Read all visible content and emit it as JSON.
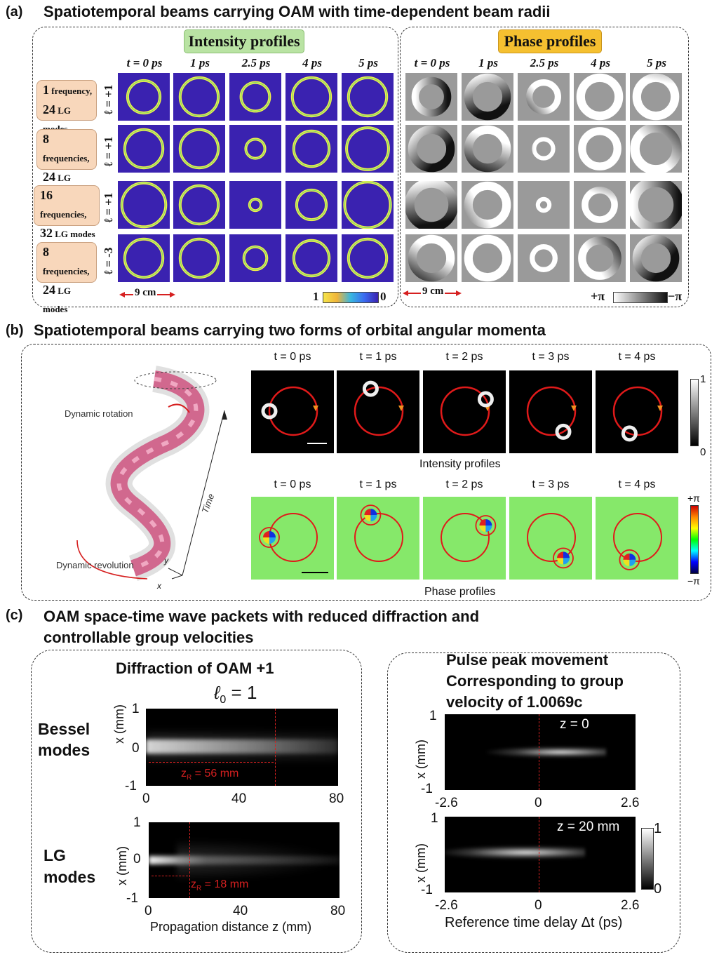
{
  "panel_a": {
    "letter": "(a)",
    "title": "Spatiotemporal beams carrying OAM with time-dependent beam radii",
    "intensity_title": "Intensity profiles",
    "phase_title": "Phase profiles",
    "intensity_times": [
      "t = 0 ps",
      "1 ps",
      "2.5 ps",
      "4 ps",
      "5 ps"
    ],
    "phase_times": [
      "t = 0 ps",
      "1 ps",
      "2.5 ps",
      "4 ps",
      "5 ps"
    ],
    "rows": [
      {
        "l1": "1",
        "l1b": " frequency,",
        "l2": "24",
        "l2b": " LG modes",
        "ell": "ℓ = +1",
        "radii": [
          0.34,
          0.4,
          0.3,
          0.4,
          0.4
        ]
      },
      {
        "l1": "8",
        "l1b": " frequencies,",
        "l2": "24",
        "l2b": " LG modes",
        "ell": "ℓ = +1",
        "radii": [
          0.4,
          0.4,
          0.2,
          0.37,
          0.44
        ]
      },
      {
        "l1": "16",
        "l1b": " frequencies,",
        "l2": "32",
        "l2b": " LG modes",
        "ell": "ℓ = +1",
        "radii": [
          0.46,
          0.4,
          0.12,
          0.31,
          0.48
        ]
      },
      {
        "l1": "8",
        "l1b": " frequencies,",
        "l2": "24",
        "l2b": " LG modes",
        "ell": "ℓ = -3",
        "radii": [
          0.4,
          0.4,
          0.24,
          0.37,
          0.4
        ]
      }
    ],
    "scale_intensity": "9 cm",
    "scale_phase": "9 cm",
    "cbar_intensity_left": "1",
    "cbar_intensity_right": "0",
    "cbar_phase_left": "+π",
    "cbar_phase_right": "−π",
    "colors": {
      "tile_bg": "#3a22b0",
      "ring": "#f2f04a",
      "tag_bg": "#f8d7bb",
      "intensity_tag": "#b9e3a3",
      "phase_tag": "#f5c030",
      "phase_bg": "#9a9a9a"
    }
  },
  "panel_b": {
    "letter": "(b)",
    "title": "Spatiotemporal beams carrying two forms of orbital angular momenta",
    "times": [
      "t = 0 ps",
      "t = 1 ps",
      "t = 2 ps",
      "t = 3 ps",
      "t = 4 ps"
    ],
    "intensity_caption": "Intensity profiles",
    "phase_caption": "Phase profiles",
    "cbar_intensity_top": "1",
    "cbar_intensity_bottom": "0",
    "cbar_phase_top": "+π",
    "cbar_phase_bottom": "−π",
    "rotation_label": "Dynamic rotation",
    "revolution_label": "Dynamic revolution",
    "time_axis": "Time",
    "y_axis": "y",
    "x_axis": "x",
    "positions_deg": [
      180,
      110,
      30,
      300,
      250
    ]
  },
  "panel_c": {
    "letter": "(c)",
    "title_line1": "OAM space-time wave packets with reduced diffraction and",
    "title_line2": "controllable group velocities",
    "left": {
      "heading": "Diffraction of OAM +1",
      "ell": "ℓ",
      "ell_sub": "0",
      "ell_val": " = 1",
      "bessel_label_1": "Bessel",
      "bessel_label_2": "modes",
      "lg_label_1": "LG",
      "lg_label_2": "modes",
      "ylabel": "x (mm)",
      "xlabel": "Propagation distance z (mm)",
      "y_ticks": [
        "1",
        "0",
        "-1"
      ],
      "x_ticks": [
        "0",
        "40",
        "80"
      ],
      "zr_bessel_pre": "z",
      "zr_bessel_sub": "R",
      "zr_bessel_val": " = 56 mm",
      "zr_lg_pre": "z",
      "zr_lg_sub": "R",
      "zr_lg_val": " = 18 mm"
    },
    "right": {
      "heading_1": "Pulse peak movement",
      "heading_2": "Corresponding to group",
      "heading_3": "velocity of 1.0069c",
      "ylabel": "x (mm)",
      "xlabel": "Reference time delay Δt (ps)",
      "y_ticks": [
        "1",
        "-1"
      ],
      "x_ticks": [
        "-2.6",
        "0",
        "2.6"
      ],
      "z_top": "z = 0",
      "z_bottom": "z = 20 mm",
      "cbar_top": "1",
      "cbar_bottom": "0"
    }
  }
}
